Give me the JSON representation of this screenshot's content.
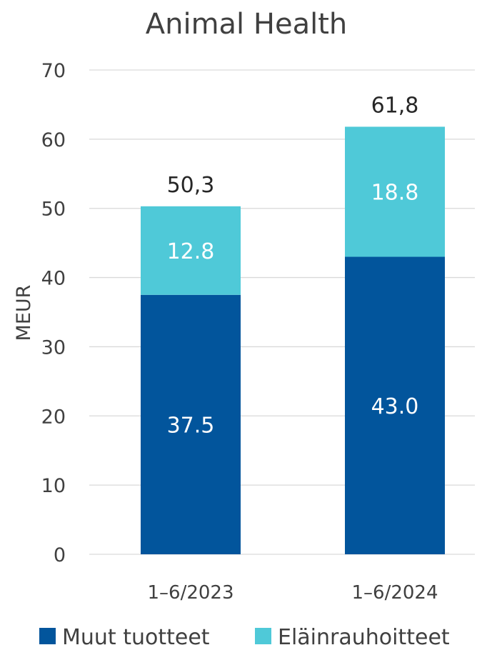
{
  "chart_data": {
    "type": "bar",
    "stacked": true,
    "title": "Animal Health",
    "ylabel": "MEUR",
    "xlabel": "",
    "ylim": [
      0,
      70
    ],
    "yticks": [
      0,
      10,
      20,
      30,
      40,
      50,
      60,
      70
    ],
    "categories": [
      "1–6/2023",
      "1–6/2024"
    ],
    "series": [
      {
        "name": "Muut tuotteet",
        "values": [
          37.5,
          43.0
        ],
        "labels": [
          "37.5",
          "43.0"
        ],
        "color": "#02559C"
      },
      {
        "name": "Eläinrauhoitteet",
        "values": [
          12.8,
          18.8
        ],
        "labels": [
          "12.8",
          "18.8"
        ],
        "color": "#4FC9D8"
      }
    ],
    "totals": [
      50.3,
      61.8
    ],
    "total_labels": [
      "50,3",
      "61,8"
    ],
    "grid": true,
    "legend": "bottom"
  }
}
